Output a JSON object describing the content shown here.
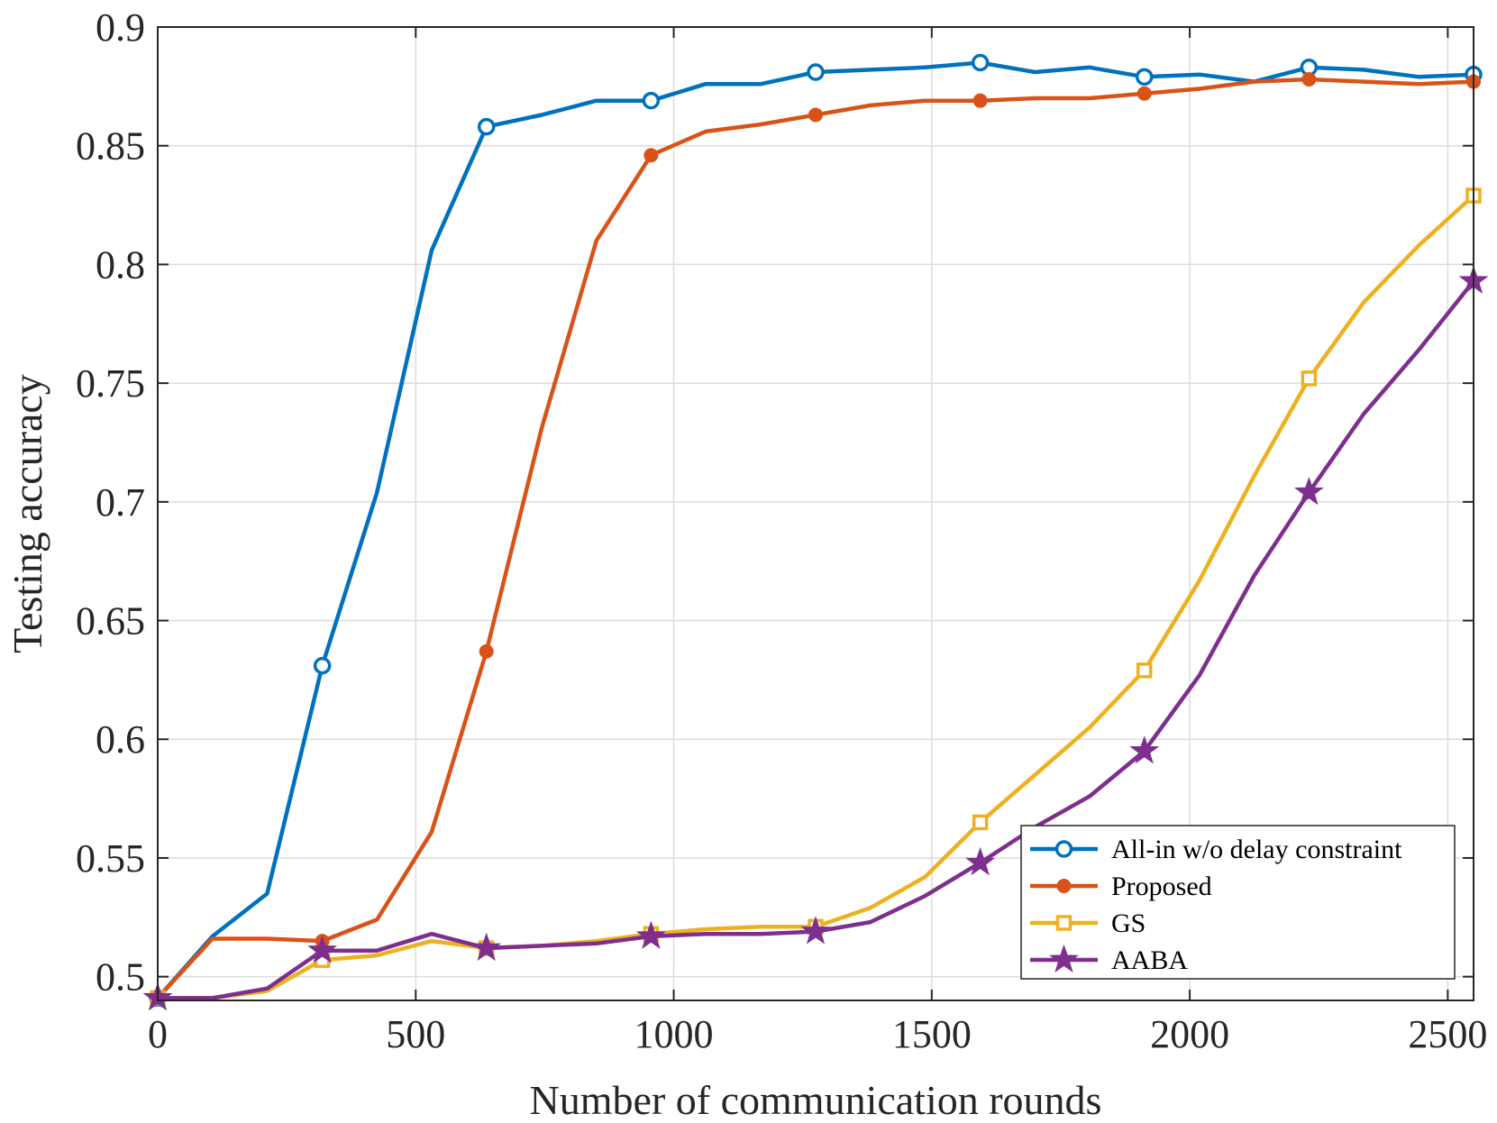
{
  "chart_data": {
    "type": "line",
    "title": "",
    "xlabel": "Number of communication rounds",
    "ylabel": "Testing accuracy",
    "xlim": [
      0,
      2550
    ],
    "ylim": [
      0.49,
      0.9
    ],
    "x_ticks": [
      0,
      500,
      1000,
      1500,
      2000,
      2500
    ],
    "y_ticks": [
      0.5,
      0.55,
      0.6,
      0.65,
      0.7,
      0.75,
      0.8,
      0.85,
      0.9
    ],
    "x_tick_labels": [
      "0",
      "500",
      "1000",
      "1500",
      "2000",
      "2500"
    ],
    "y_tick_labels": [
      "0.5",
      "0.55",
      "0.6",
      "0.65",
      "0.7",
      "0.75",
      "0.8",
      "0.85",
      "0.9"
    ],
    "grid": true,
    "legend_position": "bottom-right",
    "x": [
      0,
      106,
      212,
      319,
      425,
      531,
      637,
      744,
      850,
      956,
      1062,
      1169,
      1275,
      1381,
      1487,
      1594,
      1700,
      1806,
      1912,
      2019,
      2125,
      2231,
      2337,
      2444,
      2550
    ],
    "marker_x": [
      0,
      319,
      637,
      956,
      1275,
      1594,
      1912,
      2231,
      2550
    ],
    "series": [
      {
        "name": "All-in w/o delay constraint",
        "color": "#0072BD",
        "marker": "circle",
        "values": [
          0.491,
          0.517,
          0.535,
          0.631,
          0.704,
          0.806,
          0.858,
          0.863,
          0.869,
          0.869,
          0.876,
          0.876,
          0.881,
          0.882,
          0.883,
          0.885,
          0.881,
          0.883,
          0.879,
          0.88,
          0.877,
          0.883,
          0.882,
          0.879,
          0.88
        ]
      },
      {
        "name": "Proposed",
        "color": "#D95319",
        "marker": "filled-circle",
        "values": [
          0.491,
          0.516,
          0.516,
          0.515,
          0.524,
          0.561,
          0.637,
          0.731,
          0.81,
          0.846,
          0.856,
          0.859,
          0.863,
          0.867,
          0.869,
          0.869,
          0.87,
          0.87,
          0.872,
          0.874,
          0.877,
          0.878,
          0.877,
          0.876,
          0.877
        ]
      },
      {
        "name": "GS",
        "color": "#EDB120",
        "marker": "square",
        "values": [
          0.491,
          0.491,
          0.494,
          0.507,
          0.509,
          0.515,
          0.512,
          0.513,
          0.515,
          0.518,
          0.52,
          0.521,
          0.521,
          0.529,
          0.542,
          0.565,
          0.585,
          0.605,
          0.629,
          0.667,
          0.711,
          0.752,
          0.784,
          0.808,
          0.829
        ]
      },
      {
        "name": "AABA",
        "color": "#7E2F8E",
        "marker": "star",
        "values": [
          0.491,
          0.491,
          0.495,
          0.511,
          0.511,
          0.518,
          0.512,
          0.513,
          0.514,
          0.517,
          0.518,
          0.518,
          0.519,
          0.523,
          0.534,
          0.548,
          0.563,
          0.576,
          0.595,
          0.627,
          0.669,
          0.704,
          0.737,
          0.764,
          0.793
        ]
      }
    ]
  }
}
